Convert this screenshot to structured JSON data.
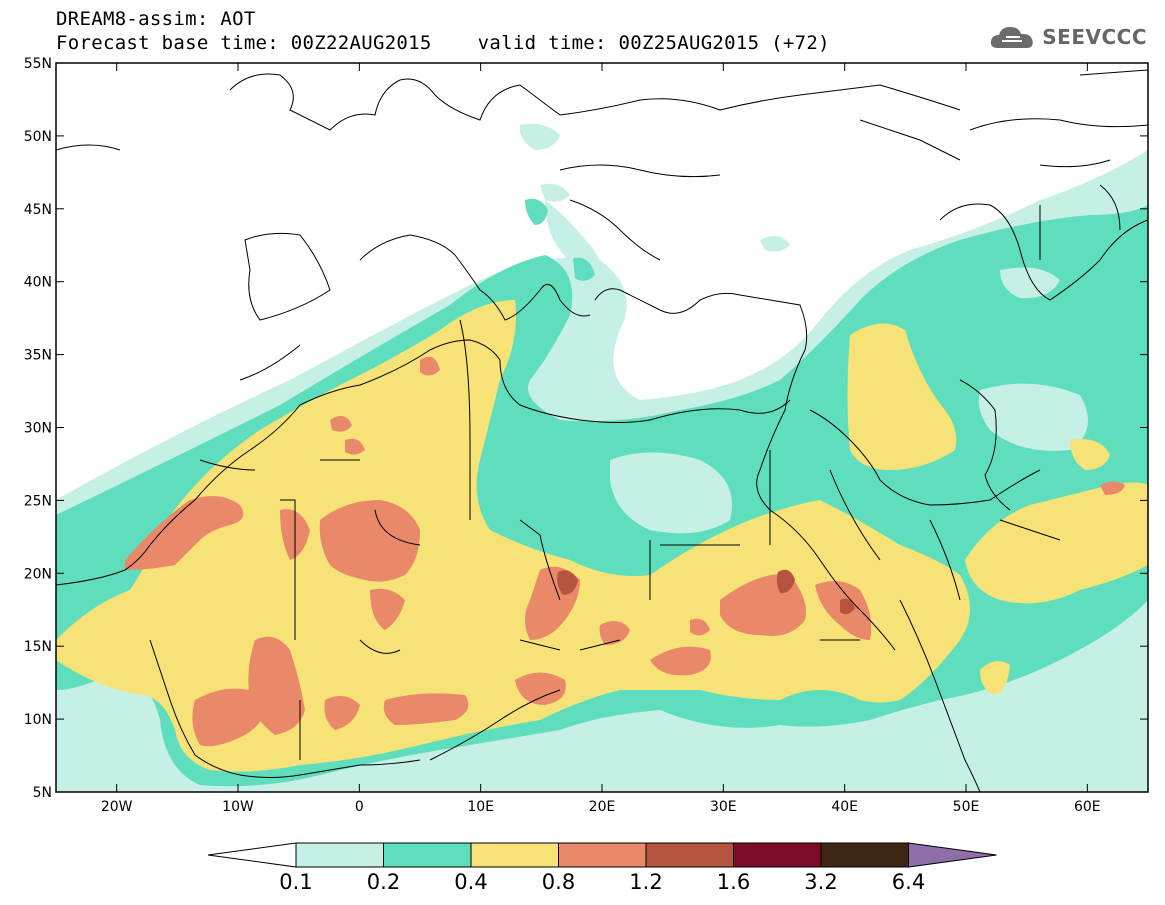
{
  "title": {
    "line1": "DREAM8-assim: AOT",
    "base": "Forecast base time: 00Z22AUG2015",
    "valid": "valid time: 00Z25AUG2015 (+72)"
  },
  "logo": {
    "text": "SEEVCCC",
    "icon": "cloud-icon"
  },
  "map": {
    "projection": "cylindrical-equidistant",
    "lon_range": [
      -25,
      65
    ],
    "lat_range": [
      5,
      55
    ],
    "lat_ticks": [
      {
        "value": 55,
        "label": "55N"
      },
      {
        "value": 50,
        "label": "50N"
      },
      {
        "value": 45,
        "label": "45N"
      },
      {
        "value": 40,
        "label": "40N"
      },
      {
        "value": 35,
        "label": "35N"
      },
      {
        "value": 30,
        "label": "30N"
      },
      {
        "value": 25,
        "label": "25N"
      },
      {
        "value": 20,
        "label": "20N"
      },
      {
        "value": 15,
        "label": "15N"
      },
      {
        "value": 10,
        "label": "10N"
      },
      {
        "value": 5,
        "label": "5N"
      }
    ],
    "lon_ticks": [
      {
        "value": -20,
        "label": "20W"
      },
      {
        "value": -10,
        "label": "10W"
      },
      {
        "value": 0,
        "label": "0"
      },
      {
        "value": 10,
        "label": "10E"
      },
      {
        "value": 20,
        "label": "20E"
      },
      {
        "value": 30,
        "label": "30E"
      },
      {
        "value": 40,
        "label": "40E"
      },
      {
        "value": 50,
        "label": "50E"
      },
      {
        "value": 60,
        "label": "60E"
      }
    ]
  },
  "colorbar": {
    "labels": [
      "0.1",
      "0.2",
      "0.4",
      "0.8",
      "1.2",
      "1.6",
      "3.2",
      "6.4"
    ],
    "low_extension_color": "#ffffff",
    "colors": [
      "#c6efe6",
      "#5edebc",
      "#f6e277",
      "#e9896a",
      "#b6553f",
      "#7c0d2a",
      "#3e2614"
    ],
    "high_extension_color": "#8f6ea8"
  },
  "colors": {
    "c1": "#c6efe6",
    "c2": "#5edebc",
    "c3": "#f6e277",
    "c4": "#e9896a",
    "c5": "#b6553f",
    "c6": "#7c0d2a"
  }
}
